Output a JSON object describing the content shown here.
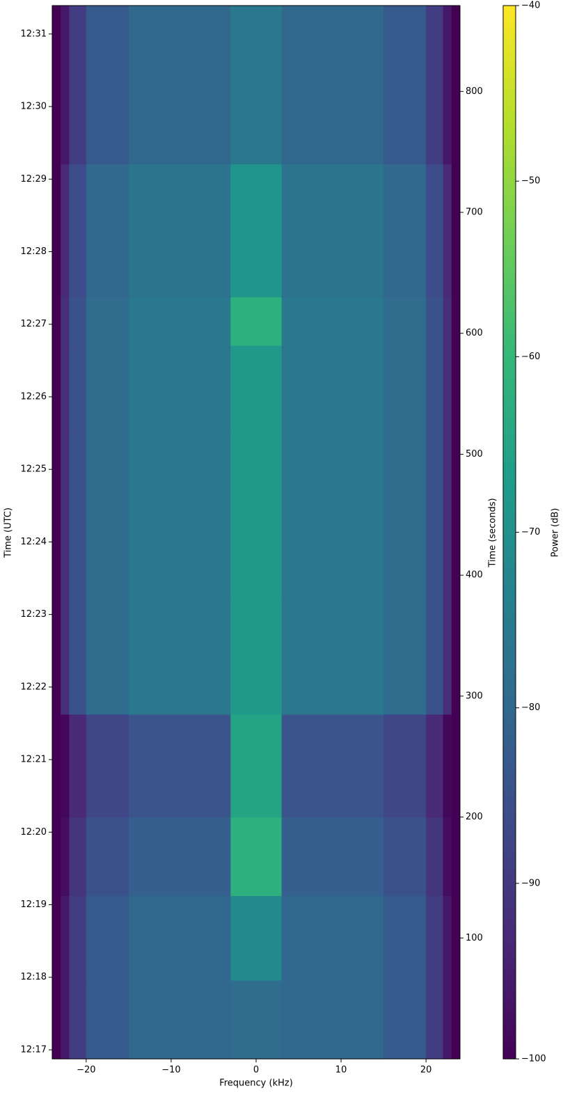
{
  "chart_data": {
    "type": "spectrogram",
    "xlabel": "Frequency (kHz)",
    "ylabel": "Time (UTC)",
    "y2label": "Time (seconds)",
    "colorbar_label": "Power (dB)",
    "colormap": "viridis",
    "xlim": [
      -24,
      24
    ],
    "xticks": [
      {
        "value": -20,
        "label": "−20"
      },
      {
        "value": -10,
        "label": "−10"
      },
      0,
      10,
      20
    ],
    "ylim": [
      0,
      871
    ],
    "yticks": [
      {
        "value": 7.5,
        "label": "12:17"
      },
      {
        "value": 67.5,
        "label": "12:18"
      },
      {
        "value": 127.5,
        "label": "12:19"
      },
      {
        "value": 187.5,
        "label": "12:20"
      },
      {
        "value": 247.5,
        "label": "12:21"
      },
      {
        "value": 307.5,
        "label": "12:22"
      },
      {
        "value": 367.5,
        "label": "12:23"
      },
      {
        "value": 427.5,
        "label": "12:24"
      },
      {
        "value": 487.5,
        "label": "12:25"
      },
      {
        "value": 547.5,
        "label": "12:26"
      },
      {
        "value": 607.5,
        "label": "12:27"
      },
      {
        "value": 667.5,
        "label": "12:28"
      },
      {
        "value": 727.5,
        "label": "12:29"
      },
      {
        "value": 787.5,
        "label": "12:30"
      },
      {
        "value": 847.5,
        "label": "12:31"
      }
    ],
    "y2lim": [
      0,
      871
    ],
    "y2ticks": [
      100,
      200,
      300,
      400,
      500,
      600,
      700,
      800
    ],
    "clim": [
      -100,
      -40
    ],
    "cticks": [
      {
        "value": -100,
        "label": "−100"
      },
      {
        "value": -90,
        "label": "−90"
      },
      {
        "value": -80,
        "label": "−80"
      },
      {
        "value": -70,
        "label": "−70"
      },
      {
        "value": -60,
        "label": "−60"
      },
      {
        "value": -50,
        "label": "−50"
      },
      {
        "value": -40,
        "label": "−40"
      }
    ],
    "xbins": [
      -24,
      -23,
      -22,
      -20,
      -15,
      -3,
      3,
      15,
      20,
      22,
      23,
      24
    ],
    "ybins": [
      0,
      65,
      135,
      200,
      285,
      380,
      520,
      590,
      630,
      740,
      871
    ],
    "z": [
      [
        -100,
        -96,
        -89,
        -83,
        -80,
        -79,
        -80,
        -83,
        -89,
        -96,
        -100
      ],
      [
        -100,
        -96,
        -89,
        -83,
        -80,
        -72,
        -80,
        -83,
        -89,
        -96,
        -100
      ],
      [
        -100,
        -98,
        -91,
        -85,
        -82,
        -62,
        -82,
        -85,
        -91,
        -98,
        -100
      ],
      [
        -100,
        -99,
        -93,
        -87,
        -84,
        -65,
        -84,
        -87,
        -93,
        -99,
        -100
      ],
      [
        -100,
        -92,
        -85,
        -79,
        -76,
        -68,
        -76,
        -79,
        -85,
        -92,
        -100
      ],
      [
        -100,
        -92,
        -85,
        -79,
        -76,
        -68,
        -76,
        -79,
        -85,
        -92,
        -100
      ],
      [
        -100,
        -92,
        -85,
        -79,
        -76,
        -68,
        -76,
        -79,
        -85,
        -92,
        -100
      ],
      [
        -100,
        -92,
        -85,
        -79,
        -76,
        -62,
        -76,
        -79,
        -85,
        -92,
        -100
      ],
      [
        -100,
        -93,
        -86,
        -80,
        -77,
        -69,
        -77,
        -80,
        -86,
        -93,
        -100
      ],
      [
        -100,
        -96,
        -89,
        -83,
        -80,
        -76,
        -80,
        -83,
        -89,
        -96,
        -100
      ]
    ]
  }
}
